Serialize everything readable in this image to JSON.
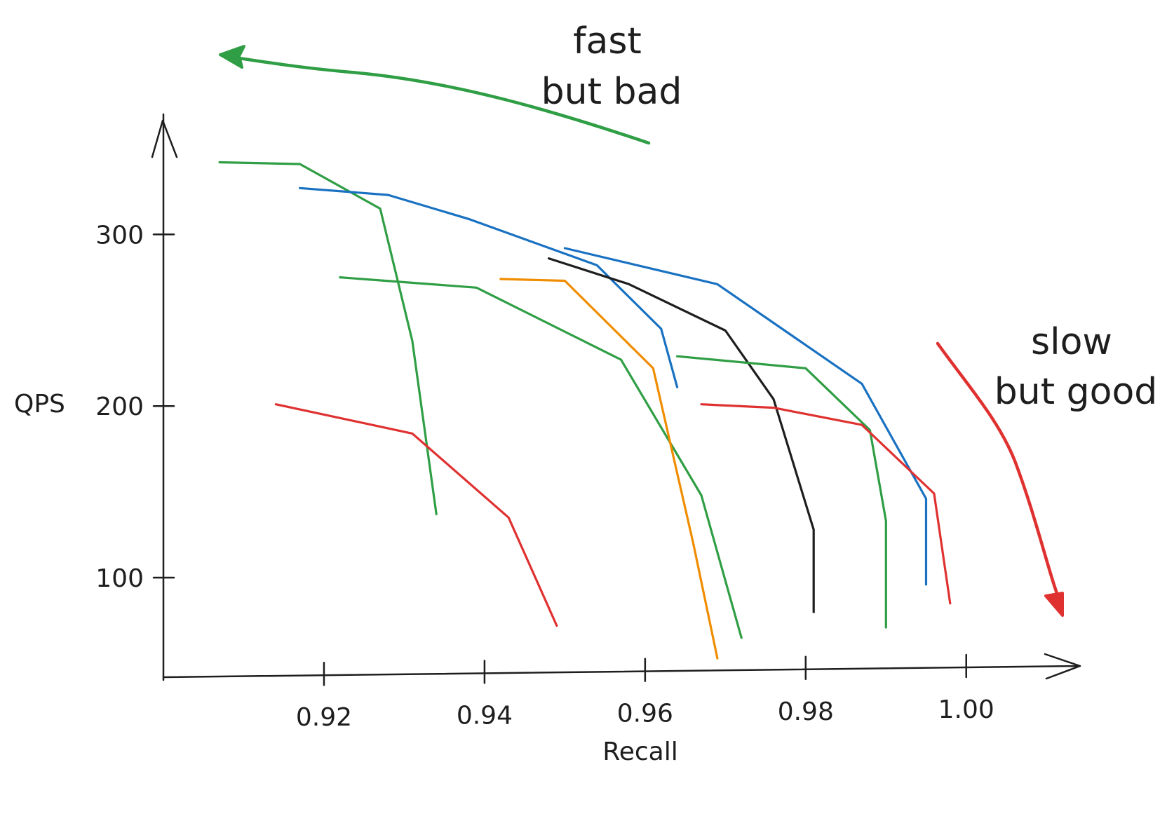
{
  "colors": {
    "green": "#2f9e44",
    "blue": "#1971c2",
    "black": "#1e1e1e",
    "orange": "#f08c00",
    "red": "#e03131"
  },
  "annotations": {
    "fast": [
      "fast",
      "but bad"
    ],
    "slow": [
      "slow",
      "but good"
    ]
  },
  "chart_data": {
    "type": "line",
    "xlabel": "Recall",
    "ylabel": "QPS",
    "xlim": [
      0.9,
      1.014
    ],
    "ylim": [
      42,
      370
    ],
    "xticks": [
      0.92,
      0.94,
      0.96,
      0.98,
      1.0
    ],
    "xtick_labels": [
      "0.92",
      "0.94",
      "0.96",
      "0.98",
      "1.00"
    ],
    "yticks": [
      100,
      200,
      300
    ],
    "ytick_labels": [
      "100",
      "200",
      "300"
    ],
    "grid": false,
    "legend": "none",
    "series": [
      {
        "color": "green",
        "points": [
          [
            0.907,
            342
          ],
          [
            0.917,
            341
          ],
          [
            0.927,
            315
          ],
          [
            0.931,
            238
          ],
          [
            0.934,
            137
          ]
        ]
      },
      {
        "color": "blue",
        "points": [
          [
            0.917,
            327
          ],
          [
            0.928,
            323
          ],
          [
            0.938,
            309
          ],
          [
            0.954,
            282
          ],
          [
            0.962,
            245
          ],
          [
            0.964,
            211
          ]
        ]
      },
      {
        "color": "green",
        "points": [
          [
            0.922,
            275
          ],
          [
            0.939,
            269
          ],
          [
            0.957,
            227
          ],
          [
            0.967,
            148
          ],
          [
            0.972,
            65
          ]
        ]
      },
      {
        "color": "red",
        "points": [
          [
            0.914,
            201
          ],
          [
            0.931,
            184
          ],
          [
            0.943,
            135
          ],
          [
            0.949,
            72
          ]
        ]
      },
      {
        "color": "orange",
        "points": [
          [
            0.942,
            274
          ],
          [
            0.95,
            273
          ],
          [
            0.961,
            222
          ],
          [
            0.966,
            120
          ],
          [
            0.969,
            53
          ]
        ]
      },
      {
        "color": "black",
        "points": [
          [
            0.948,
            286
          ],
          [
            0.958,
            271
          ],
          [
            0.97,
            244
          ],
          [
            0.976,
            204
          ],
          [
            0.981,
            128
          ],
          [
            0.981,
            80
          ]
        ]
      },
      {
        "color": "blue",
        "points": [
          [
            0.95,
            292
          ],
          [
            0.969,
            271
          ],
          [
            0.987,
            213
          ],
          [
            0.995,
            146
          ],
          [
            0.995,
            96
          ]
        ]
      },
      {
        "color": "green",
        "points": [
          [
            0.964,
            229
          ],
          [
            0.98,
            222
          ],
          [
            0.988,
            186
          ],
          [
            0.99,
            133
          ],
          [
            0.99,
            71
          ]
        ]
      },
      {
        "color": "red",
        "points": [
          [
            0.967,
            201
          ],
          [
            0.976,
            199
          ],
          [
            0.987,
            189
          ],
          [
            0.996,
            149
          ],
          [
            0.998,
            85
          ]
        ]
      }
    ]
  }
}
